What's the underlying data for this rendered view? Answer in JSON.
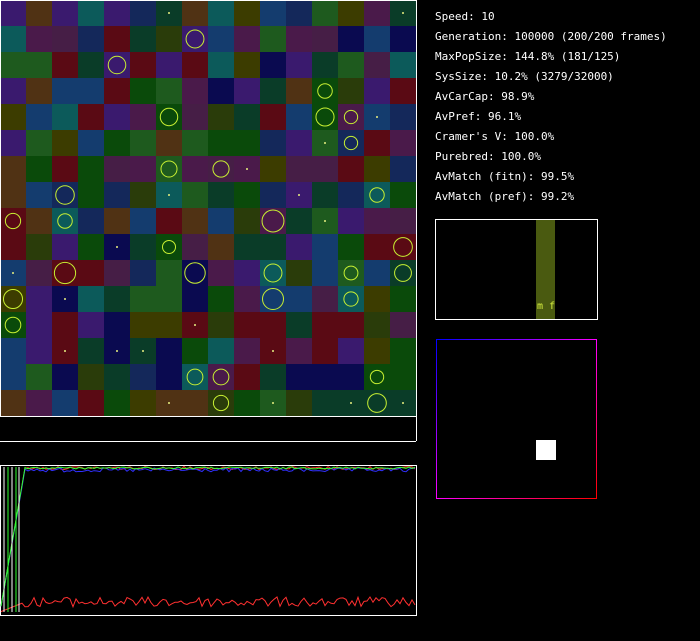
{
  "stats": [
    "Speed: 10",
    "Generation: 100000 (200/200 frames)",
    "MaxPopSize: 144.8% (181/125)",
    "SysSize: 10.2% (3279/32000)",
    "AvCarCap: 98.9%",
    "AvPref: 96.1%",
    "Cramer's V: 100.0%",
    "Purebred: 100.0%",
    "AvMatch (fitn): 99.5%",
    "AvMatch (pref): 99.2%"
  ],
  "pref_label": "m f"
}
